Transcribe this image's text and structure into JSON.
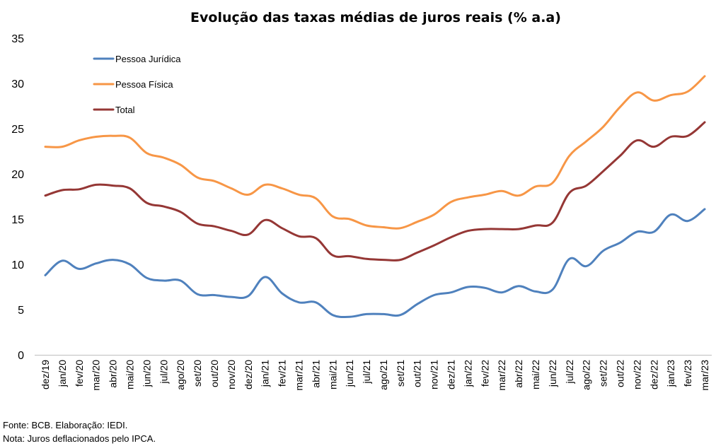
{
  "chart_data": {
    "type": "line",
    "title": "Evolução das taxas médias de juros reais (% a.a)",
    "xlabel": "",
    "ylabel": "",
    "ylim": [
      0,
      35
    ],
    "yticks": [
      "0",
      "5",
      "10",
      "15",
      "20",
      "25",
      "30",
      "35"
    ],
    "grid": false,
    "legend_position": "top-left",
    "categories": [
      "dez/19",
      "jan/20",
      "fev/20",
      "mar/20",
      "abr/20",
      "mai/20",
      "jun/20",
      "jul/20",
      "ago/20",
      "set/20",
      "out/20",
      "nov/20",
      "dez/20",
      "jan/21",
      "fev/21",
      "mar/21",
      "abr/21",
      "mai/21",
      "jun/21",
      "jul/21",
      "ago/21",
      "set/21",
      "out/21",
      "nov/21",
      "dez/21",
      "jan/22",
      "fev/22",
      "mar/22",
      "abr/22",
      "mai/22",
      "jun/22",
      "jul/22",
      "ago/22",
      "set/22",
      "out/22",
      "nov/22",
      "dez/22",
      "jan/23",
      "fev/23",
      "mar/23"
    ],
    "series": [
      {
        "name": "Pessoa Jurídica",
        "color": "#4f81bd",
        "values": [
          8.8,
          10.4,
          9.5,
          10.1,
          10.5,
          10.0,
          8.5,
          8.2,
          8.2,
          6.7,
          6.6,
          6.4,
          6.5,
          8.6,
          6.8,
          5.8,
          5.8,
          4.4,
          4.2,
          4.5,
          4.5,
          4.4,
          5.6,
          6.6,
          6.9,
          7.5,
          7.4,
          6.9,
          7.6,
          7.0,
          7.2,
          10.6,
          9.8,
          11.5,
          12.4,
          13.6,
          13.6,
          15.5,
          14.8,
          16.1
        ]
      },
      {
        "name": "Pessoa Física",
        "color": "#f79646",
        "values": [
          23.0,
          23.0,
          23.7,
          24.1,
          24.2,
          24.0,
          22.3,
          21.8,
          21.0,
          19.6,
          19.2,
          18.4,
          17.7,
          18.8,
          18.4,
          17.7,
          17.3,
          15.3,
          15.0,
          14.3,
          14.1,
          14.0,
          14.7,
          15.5,
          16.9,
          17.4,
          17.7,
          18.1,
          17.6,
          18.6,
          19.0,
          22.0,
          23.6,
          25.2,
          27.4,
          29.0,
          28.1,
          28.7,
          29.1,
          30.8
        ]
      },
      {
        "name": "Total",
        "color": "#953735",
        "values": [
          17.6,
          18.2,
          18.3,
          18.8,
          18.7,
          18.4,
          16.8,
          16.4,
          15.8,
          14.5,
          14.2,
          13.7,
          13.3,
          14.9,
          14.0,
          13.1,
          12.9,
          11.0,
          10.9,
          10.6,
          10.5,
          10.5,
          11.3,
          12.1,
          13.0,
          13.7,
          13.9,
          13.9,
          13.9,
          14.3,
          14.6,
          17.9,
          18.7,
          20.3,
          22.0,
          23.7,
          23.0,
          24.1,
          24.2,
          25.7
        ]
      }
    ]
  },
  "footer": {
    "source": "Fonte: BCB. Elaboração: IEDI.",
    "note": "Nota: Juros deflacionados pelo IPCA."
  }
}
